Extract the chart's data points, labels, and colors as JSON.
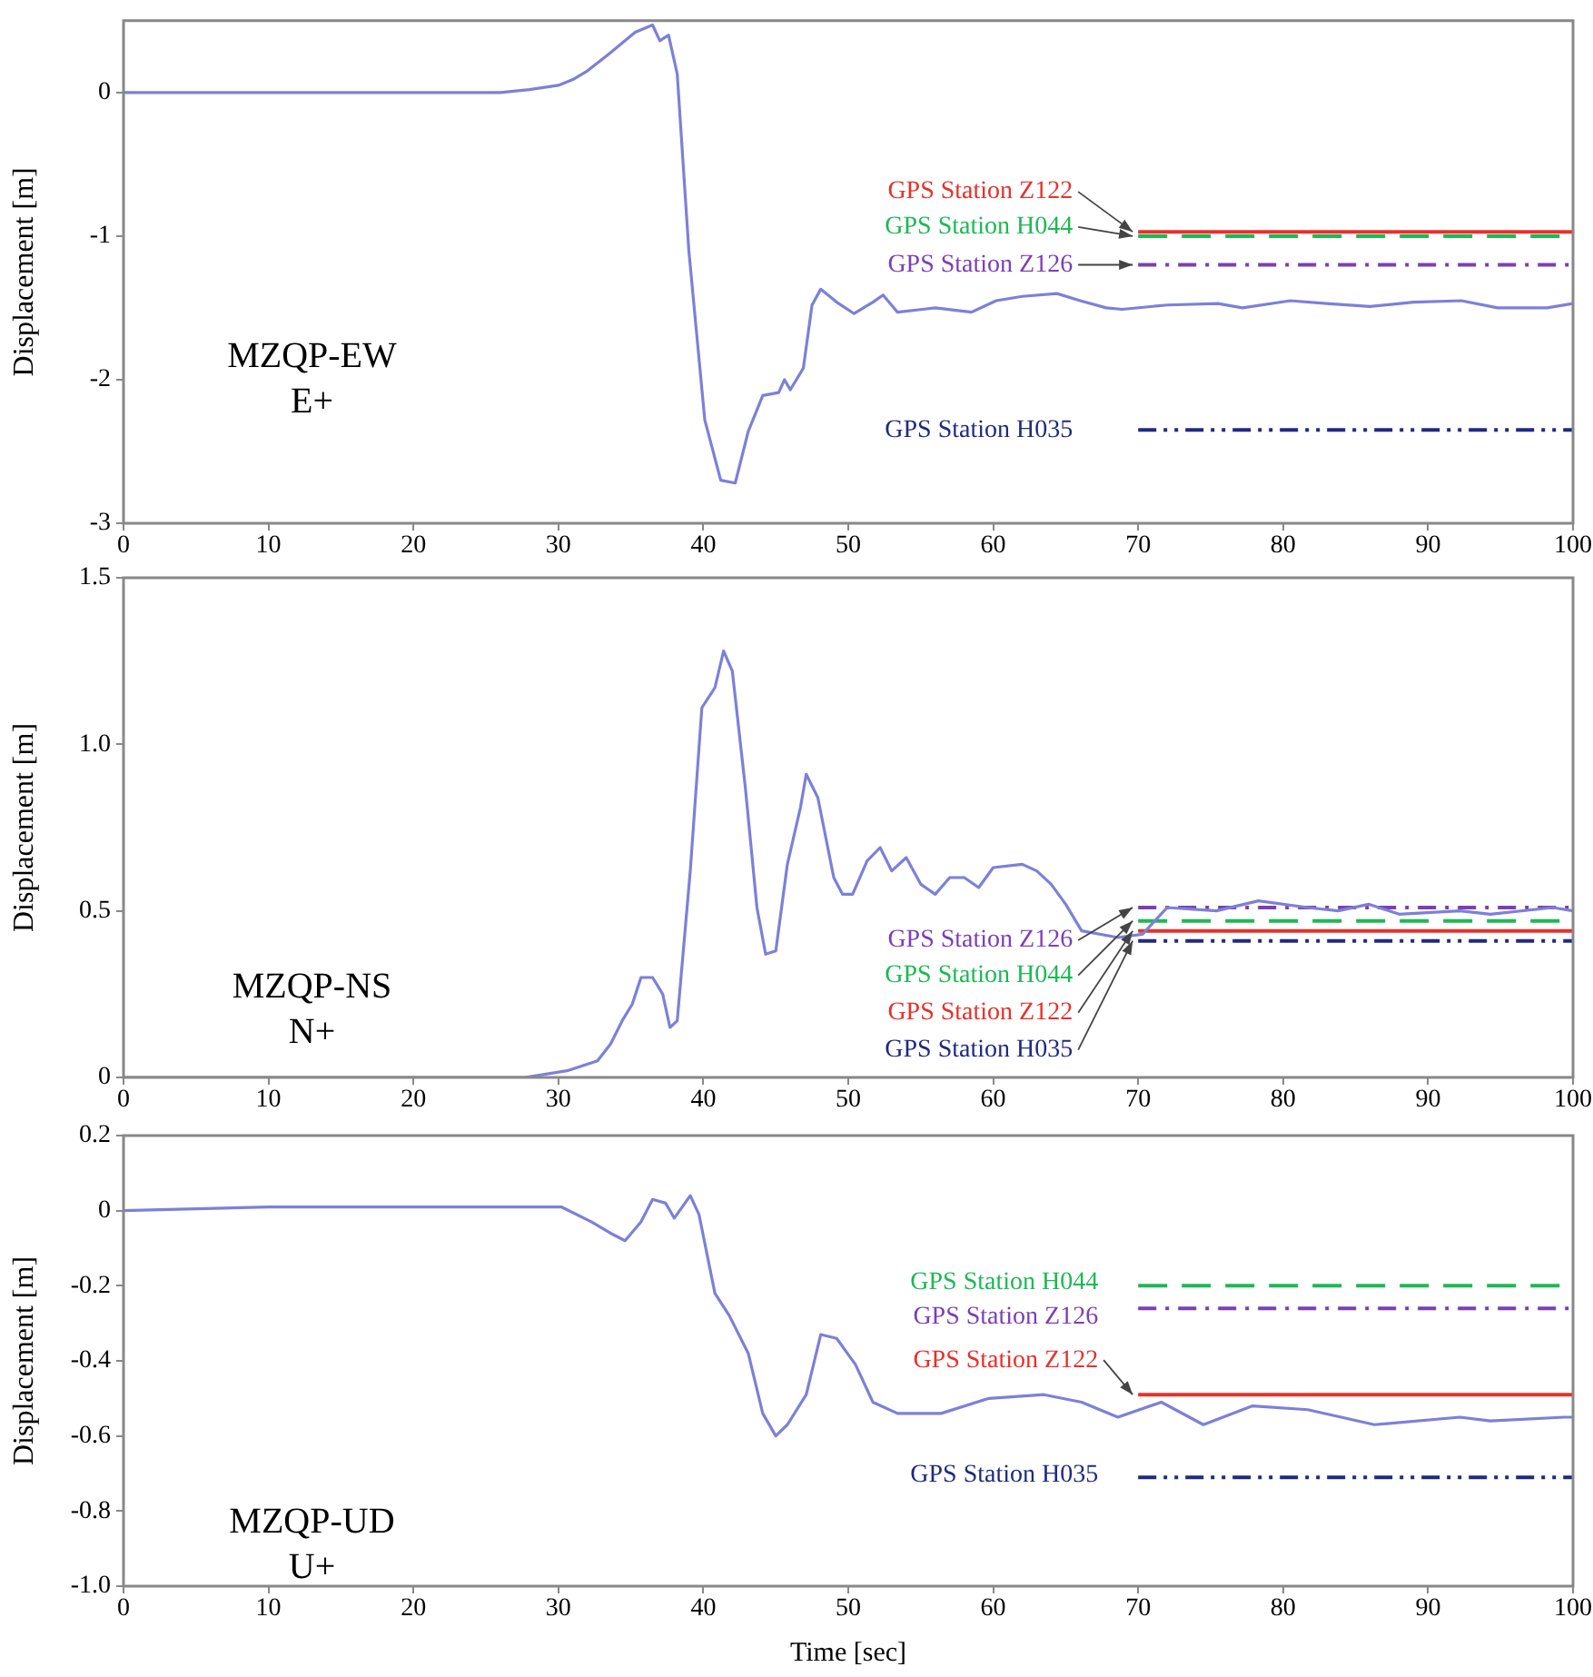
{
  "chart_data": [
    {
      "type": "line",
      "ylabel": "Displacement [m]",
      "xlim": [
        0,
        100
      ],
      "xticks": [
        0,
        10,
        20,
        30,
        40,
        50,
        60,
        70,
        80,
        90,
        100
      ],
      "ylim": [
        -3,
        0.5
      ],
      "yticks": [
        0,
        -1,
        -2,
        -3
      ],
      "grid": false,
      "legend": false,
      "marker": "none",
      "annotations": [
        "MZQP-EW",
        "E+"
      ],
      "series": [
        {
          "color": "#7d80d8",
          "x": [
            0,
            10,
            20,
            26,
            28,
            30,
            31,
            32,
            33.5,
            35.3,
            36.5,
            37,
            37.6,
            38.2,
            39,
            40.1,
            41.2,
            42.2,
            43.1,
            44.1,
            45.2,
            45.6,
            46,
            46.9,
            47.5,
            48.1,
            49.2,
            50.4,
            51.7,
            52.4,
            53.4,
            56,
            58.5,
            60.2,
            62,
            64.4,
            66,
            67.8,
            68.9,
            72,
            75.5,
            77.2,
            80.5,
            83,
            86,
            89,
            92.3,
            94.8,
            98.2,
            100
          ],
          "values": [
            0,
            0,
            0,
            0,
            0.02,
            0.05,
            0.09,
            0.15,
            0.27,
            0.42,
            0.47,
            0.36,
            0.4,
            0.13,
            -1.1,
            -2.28,
            -2.7,
            -2.72,
            -2.36,
            -2.11,
            -2.09,
            -2,
            -2.07,
            -1.92,
            -1.48,
            -1.37,
            -1.46,
            -1.54,
            -1.46,
            -1.41,
            -1.53,
            -1.5,
            -1.53,
            -1.45,
            -1.42,
            -1.4,
            -1.45,
            -1.5,
            -1.51,
            -1.48,
            -1.47,
            -1.5,
            -1.45,
            -1.47,
            -1.49,
            -1.46,
            -1.45,
            -1.5,
            -1.5,
            -1.47
          ]
        },
        {
          "name": "GPS Station Z122",
          "color": "#e8302a",
          "line_style": "solid",
          "x": [
            70,
            100
          ],
          "values": [
            -0.97,
            -0.97
          ]
        },
        {
          "name": "GPS Station H044",
          "color": "#1db954",
          "line_style": "dashed",
          "x": [
            70,
            100
          ],
          "values": [
            -1,
            -1
          ]
        },
        {
          "name": "GPS Station Z126",
          "color": "#7b3fb5",
          "line_style": "dashdot",
          "x": [
            70,
            100
          ],
          "values": [
            -1.2,
            -1.2
          ]
        },
        {
          "name": "GPS Station H035",
          "color": "#1f2a80",
          "line_style": "dashdotdot",
          "x": [
            70,
            100
          ],
          "values": [
            -2.35,
            -2.35
          ]
        }
      ]
    },
    {
      "type": "line",
      "ylabel": "Displacement [m]",
      "xlim": [
        0,
        100
      ],
      "xticks": [
        0,
        10,
        20,
        30,
        40,
        50,
        60,
        70,
        80,
        90,
        100
      ],
      "ylim": [
        0,
        1.5
      ],
      "yticks": [
        0,
        0.5,
        {
          "value": 1,
          "label": "1.0"
        },
        1.5
      ],
      "grid": false,
      "legend": false,
      "marker": "none",
      "annotations": [
        "MZQP-NS",
        "N+"
      ],
      "series": [
        {
          "color": "#7d80d8",
          "x": [
            0,
            10,
            20,
            27.7,
            30.6,
            32.7,
            33.6,
            34.4,
            35.1,
            35.7,
            36.5,
            37.2,
            37.7,
            38.2,
            39.1,
            39.9,
            40.8,
            41.4,
            42,
            42.9,
            43.7,
            44.3,
            45,
            45.8,
            46.7,
            47.1,
            47.9,
            49,
            49.6,
            50.3,
            51.3,
            52.2,
            53,
            54,
            55,
            56,
            57,
            58,
            59,
            60,
            62,
            63,
            64,
            65,
            66.1,
            68.6,
            70.3,
            72,
            75.4,
            78.3,
            81.7,
            83.8,
            85.9,
            88,
            92.2,
            94.3,
            98.6,
            100
          ],
          "values": [
            0,
            0,
            0,
            0,
            0.02,
            0.05,
            0.1,
            0.17,
            0.22,
            0.3,
            0.3,
            0.25,
            0.15,
            0.17,
            0.62,
            1.11,
            1.17,
            1.28,
            1.22,
            0.87,
            0.51,
            0.37,
            0.38,
            0.64,
            0.81,
            0.91,
            0.84,
            0.6,
            0.55,
            0.55,
            0.65,
            0.69,
            0.62,
            0.66,
            0.58,
            0.55,
            0.6,
            0.6,
            0.57,
            0.63,
            0.64,
            0.62,
            0.58,
            0.52,
            0.44,
            0.42,
            0.43,
            0.51,
            0.5,
            0.53,
            0.51,
            0.5,
            0.52,
            0.49,
            0.5,
            0.49,
            0.51,
            0.5
          ]
        },
        {
          "name": "GPS Station Z126",
          "color": "#7b3fb5",
          "line_style": "dashdot",
          "x": [
            70,
            100
          ],
          "values": [
            0.51,
            0.51
          ]
        },
        {
          "name": "GPS Station H044",
          "color": "#1db954",
          "line_style": "dashed",
          "x": [
            70,
            100
          ],
          "values": [
            0.47,
            0.47
          ]
        },
        {
          "name": "GPS Station Z122",
          "color": "#e8302a",
          "line_style": "solid",
          "x": [
            70,
            100
          ],
          "values": [
            0.44,
            0.44
          ]
        },
        {
          "name": "GPS Station H035",
          "color": "#1f2a80",
          "line_style": "dashdotdot",
          "x": [
            70,
            100
          ],
          "values": [
            0.41,
            0.41
          ]
        }
      ]
    },
    {
      "type": "line",
      "xlabel": "Time [sec]",
      "ylabel": "Displacement [m]",
      "xlim": [
        0,
        100
      ],
      "xticks": [
        0,
        10,
        20,
        30,
        40,
        50,
        60,
        70,
        80,
        90,
        100
      ],
      "ylim": [
        -1,
        0.2
      ],
      "yticks": [
        0.2,
        0,
        -0.2,
        -0.4,
        -0.6,
        -0.8,
        {
          "value": -1,
          "label": "-1.0"
        }
      ],
      "grid": false,
      "legend": false,
      "marker": "none",
      "annotations": [
        "MZQP-UD",
        "U+"
      ],
      "series": [
        {
          "color": "#7d80d8",
          "x": [
            0,
            10,
            28,
            30.2,
            32.3,
            33.6,
            34.6,
            35.7,
            36.5,
            37.4,
            38,
            39.1,
            39.7,
            40.8,
            41.8,
            43.1,
            44.1,
            45,
            45.8,
            47.1,
            48.1,
            49.2,
            50.5,
            51.7,
            53.4,
            56.4,
            59.7,
            63.5,
            66.1,
            68.6,
            71.6,
            74.5,
            77.9,
            81.7,
            86.3,
            92.2,
            94.3,
            99.4,
            100
          ],
          "values": [
            0,
            0.01,
            0.01,
            0.01,
            -0.03,
            -0.06,
            -0.08,
            -0.03,
            0.03,
            0.02,
            -0.02,
            0.04,
            -0.01,
            -0.22,
            -0.28,
            -0.38,
            -0.54,
            -0.6,
            -0.57,
            -0.49,
            -0.33,
            -0.34,
            -0.41,
            -0.51,
            -0.54,
            -0.54,
            -0.5,
            -0.49,
            -0.51,
            -0.55,
            -0.51,
            -0.57,
            -0.52,
            -0.53,
            -0.57,
            -0.55,
            -0.56,
            -0.55,
            -0.55
          ]
        },
        {
          "name": "GPS Station H044",
          "color": "#1db954",
          "line_style": "dashed",
          "x": [
            70,
            100
          ],
          "values": [
            -0.2,
            -0.2
          ]
        },
        {
          "name": "GPS Station Z126",
          "color": "#7b3fb5",
          "line_style": "dashdot",
          "x": [
            70,
            100
          ],
          "values": [
            -0.26,
            -0.26
          ]
        },
        {
          "name": "GPS Station Z122",
          "color": "#e8302a",
          "line_style": "solid",
          "x": [
            70,
            100
          ],
          "values": [
            -0.49,
            -0.49
          ]
        },
        {
          "name": "GPS Station H035",
          "color": "#1f2a80",
          "line_style": "dashdotdot",
          "x": [
            70,
            100
          ],
          "values": [
            -0.71,
            -0.71
          ]
        }
      ]
    }
  ]
}
